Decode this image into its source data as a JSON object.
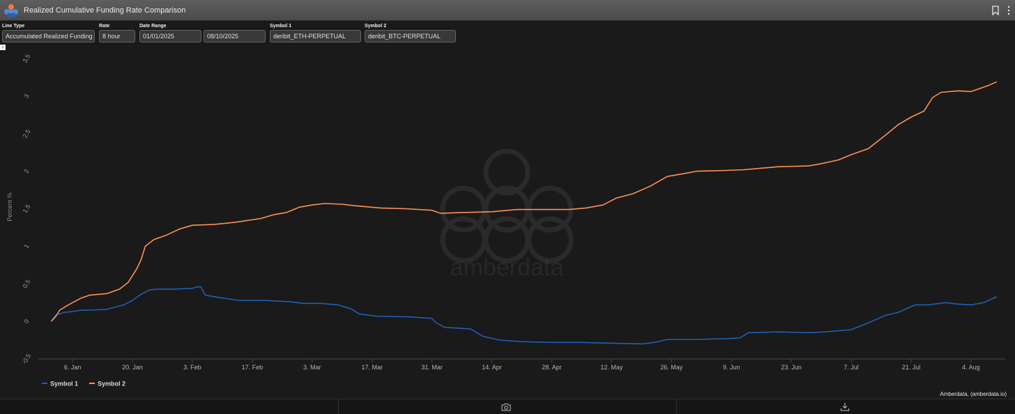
{
  "header": {
    "title": "Realized Cumulative Funding Rate Comparison"
  },
  "controls": {
    "line_type": {
      "label": "Line Type",
      "value": "Accumulated Realized Funding"
    },
    "rate": {
      "label": "Rate",
      "value": "8 hour"
    },
    "date_range": {
      "label": "Date Range",
      "start": "01/01/2025",
      "end": "08/10/2025"
    },
    "symbol1": {
      "label": "Symbol 1",
      "value": "deribit_ETH-PERPETUAL"
    },
    "symbol2": {
      "label": "Symbol 2",
      "value": "deribit_BTC-PERPETUAL"
    }
  },
  "watermark": "amberdata",
  "credit": "Amberdata, (amberdata.io)",
  "colors": {
    "symbol1": "#1f5fb5",
    "symbol2": "#ff9156",
    "background": "#1a1a1a"
  },
  "icons": [
    "logo-icon",
    "bookmark-icon",
    "more-vertical-icon",
    "camera-icon",
    "download-icon",
    "expand-toggle-icon"
  ],
  "chart_data": {
    "type": "line",
    "title": "",
    "xlabel": "",
    "ylabel": "Percent %",
    "x_axis_type": "date",
    "xlim": [
      "2024-12-29",
      "2025-08-12"
    ],
    "ylim": [
      -0.5,
      3.5
    ],
    "yticks": [
      -0.5,
      0,
      0.5,
      1,
      1.5,
      2,
      2.5,
      3,
      3.5
    ],
    "xtick_dates": [
      "2025-01-06",
      "2025-01-20",
      "2025-02-03",
      "2025-02-17",
      "2025-03-03",
      "2025-03-17",
      "2025-03-31",
      "2025-04-14",
      "2025-04-28",
      "2025-05-12",
      "2025-05-26",
      "2025-06-09",
      "2025-06-23",
      "2025-07-07",
      "2025-07-21",
      "2025-08-04"
    ],
    "xtick_labels": [
      "6. Jan",
      "20. Jan",
      "3. Feb",
      "17. Feb",
      "3. Mar",
      "17. Mar",
      "31. Mar",
      "14. Apr",
      "28. Apr",
      "12. May",
      "26. May",
      "9. Jun",
      "23. Jun",
      "7. Jul",
      "21. Jul",
      "4. Aug"
    ],
    "grid": false,
    "legend_position": "bottom-left",
    "series": [
      {
        "name": "Symbol 1",
        "points": [
          [
            "2025-01-01",
            0.0
          ],
          [
            "2025-01-02",
            0.08
          ],
          [
            "2025-01-04",
            0.12
          ],
          [
            "2025-01-06",
            0.13
          ],
          [
            "2025-01-08",
            0.15
          ],
          [
            "2025-01-10",
            0.15
          ],
          [
            "2025-01-14",
            0.16
          ],
          [
            "2025-01-18",
            0.22
          ],
          [
            "2025-01-20",
            0.28
          ],
          [
            "2025-01-22",
            0.36
          ],
          [
            "2025-01-24",
            0.42
          ],
          [
            "2025-01-26",
            0.43
          ],
          [
            "2025-01-30",
            0.43
          ],
          [
            "2025-02-03",
            0.44
          ],
          [
            "2025-02-04",
            0.46
          ],
          [
            "2025-02-05",
            0.46
          ],
          [
            "2025-02-06",
            0.35
          ],
          [
            "2025-02-10",
            0.31
          ],
          [
            "2025-02-14",
            0.28
          ],
          [
            "2025-02-20",
            0.28
          ],
          [
            "2025-02-26",
            0.26
          ],
          [
            "2025-03-01",
            0.24
          ],
          [
            "2025-03-05",
            0.24
          ],
          [
            "2025-03-09",
            0.22
          ],
          [
            "2025-03-12",
            0.17
          ],
          [
            "2025-03-14",
            0.1
          ],
          [
            "2025-03-18",
            0.07
          ],
          [
            "2025-03-26",
            0.06
          ],
          [
            "2025-03-31",
            0.04
          ],
          [
            "2025-04-01",
            -0.02
          ],
          [
            "2025-04-03",
            -0.08
          ],
          [
            "2025-04-09",
            -0.1
          ],
          [
            "2025-04-12",
            -0.2
          ],
          [
            "2025-04-16",
            -0.25
          ],
          [
            "2025-04-21",
            -0.27
          ],
          [
            "2025-04-28",
            -0.28
          ],
          [
            "2025-05-05",
            -0.28
          ],
          [
            "2025-05-12",
            -0.29
          ],
          [
            "2025-05-19",
            -0.3
          ],
          [
            "2025-05-22",
            -0.28
          ],
          [
            "2025-05-25",
            -0.24
          ],
          [
            "2025-06-01",
            -0.24
          ],
          [
            "2025-06-08",
            -0.23
          ],
          [
            "2025-06-11",
            -0.22
          ],
          [
            "2025-06-13",
            -0.15
          ],
          [
            "2025-06-20",
            -0.14
          ],
          [
            "2025-06-27",
            -0.15
          ],
          [
            "2025-07-01",
            -0.14
          ],
          [
            "2025-07-07",
            -0.11
          ],
          [
            "2025-07-11",
            -0.02
          ],
          [
            "2025-07-15",
            0.08
          ],
          [
            "2025-07-18",
            0.12
          ],
          [
            "2025-07-22",
            0.22
          ],
          [
            "2025-07-25",
            0.22
          ],
          [
            "2025-07-29",
            0.25
          ],
          [
            "2025-08-01",
            0.23
          ],
          [
            "2025-08-04",
            0.22
          ],
          [
            "2025-08-07",
            0.25
          ],
          [
            "2025-08-10",
            0.33
          ]
        ]
      },
      {
        "name": "Symbol 2",
        "points": [
          [
            "2025-01-01",
            0.0
          ],
          [
            "2025-01-02",
            0.06
          ],
          [
            "2025-01-03",
            0.15
          ],
          [
            "2025-01-05",
            0.22
          ],
          [
            "2025-01-08",
            0.31
          ],
          [
            "2025-01-10",
            0.35
          ],
          [
            "2025-01-14",
            0.37
          ],
          [
            "2025-01-17",
            0.43
          ],
          [
            "2025-01-19",
            0.52
          ],
          [
            "2025-01-21",
            0.7
          ],
          [
            "2025-01-22",
            0.82
          ],
          [
            "2025-01-23",
            1.0
          ],
          [
            "2025-01-25",
            1.09
          ],
          [
            "2025-01-28",
            1.15
          ],
          [
            "2025-01-31",
            1.23
          ],
          [
            "2025-02-03",
            1.28
          ],
          [
            "2025-02-08",
            1.29
          ],
          [
            "2025-02-13",
            1.32
          ],
          [
            "2025-02-19",
            1.37
          ],
          [
            "2025-02-22",
            1.42
          ],
          [
            "2025-02-25",
            1.45
          ],
          [
            "2025-02-28",
            1.52
          ],
          [
            "2025-03-03",
            1.55
          ],
          [
            "2025-03-06",
            1.57
          ],
          [
            "2025-03-10",
            1.56
          ],
          [
            "2025-03-13",
            1.54
          ],
          [
            "2025-03-19",
            1.51
          ],
          [
            "2025-03-25",
            1.5
          ],
          [
            "2025-03-31",
            1.48
          ],
          [
            "2025-04-02",
            1.44
          ],
          [
            "2025-04-07",
            1.45
          ],
          [
            "2025-04-14",
            1.46
          ],
          [
            "2025-04-20",
            1.49
          ],
          [
            "2025-04-26",
            1.49
          ],
          [
            "2025-05-02",
            1.49
          ],
          [
            "2025-05-06",
            1.51
          ],
          [
            "2025-05-10",
            1.55
          ],
          [
            "2025-05-13",
            1.64
          ],
          [
            "2025-05-17",
            1.7
          ],
          [
            "2025-05-21",
            1.8
          ],
          [
            "2025-05-25",
            1.93
          ],
          [
            "2025-05-29",
            1.97
          ],
          [
            "2025-06-01",
            2.0
          ],
          [
            "2025-06-08",
            2.01
          ],
          [
            "2025-06-12",
            2.02
          ],
          [
            "2025-06-16",
            2.04
          ],
          [
            "2025-06-20",
            2.06
          ],
          [
            "2025-06-27",
            2.07
          ],
          [
            "2025-06-30",
            2.1
          ],
          [
            "2025-07-04",
            2.15
          ],
          [
            "2025-07-07",
            2.22
          ],
          [
            "2025-07-11",
            2.3
          ],
          [
            "2025-07-15",
            2.48
          ],
          [
            "2025-07-18",
            2.62
          ],
          [
            "2025-07-21",
            2.72
          ],
          [
            "2025-07-24",
            2.8
          ],
          [
            "2025-07-26",
            2.98
          ],
          [
            "2025-07-28",
            3.05
          ],
          [
            "2025-08-01",
            3.07
          ],
          [
            "2025-08-04",
            3.06
          ],
          [
            "2025-08-08",
            3.14
          ],
          [
            "2025-08-10",
            3.19
          ]
        ]
      }
    ]
  }
}
